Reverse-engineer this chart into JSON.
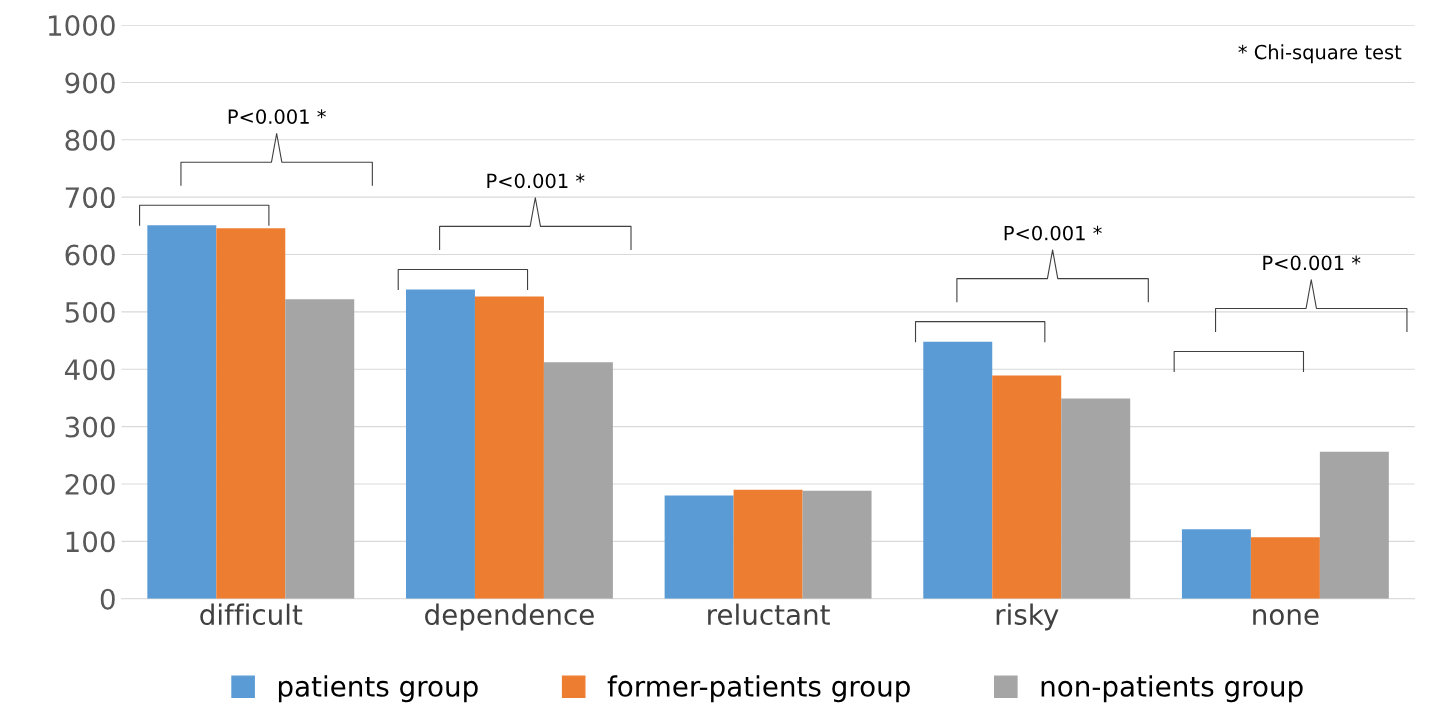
{
  "chart_data": {
    "type": "bar",
    "categories": [
      "difficult",
      "dependence",
      "reluctant",
      "risky",
      "none"
    ],
    "series": [
      {
        "name": "patients group",
        "color": "#5b9bd5",
        "values": [
          651,
          539,
          180,
          448,
          121
        ]
      },
      {
        "name": "former-patients group",
        "color": "#ed7d31",
        "values": [
          646,
          527,
          190,
          389,
          107
        ]
      },
      {
        "name": "non-patients group",
        "color": "#a5a5a5",
        "values": [
          522,
          412,
          188,
          349,
          256
        ]
      }
    ],
    "ylim": [
      0,
      1000
    ],
    "yticks": [
      0,
      100,
      200,
      300,
      400,
      500,
      600,
      700,
      800,
      900,
      1000
    ],
    "grid": "y",
    "legend": "bottom",
    "annotations": [
      "P<0.001 *",
      "P<0.001 *",
      "P<0.001 *",
      "P<0.001 *",
      "* Chi-square test"
    ]
  }
}
